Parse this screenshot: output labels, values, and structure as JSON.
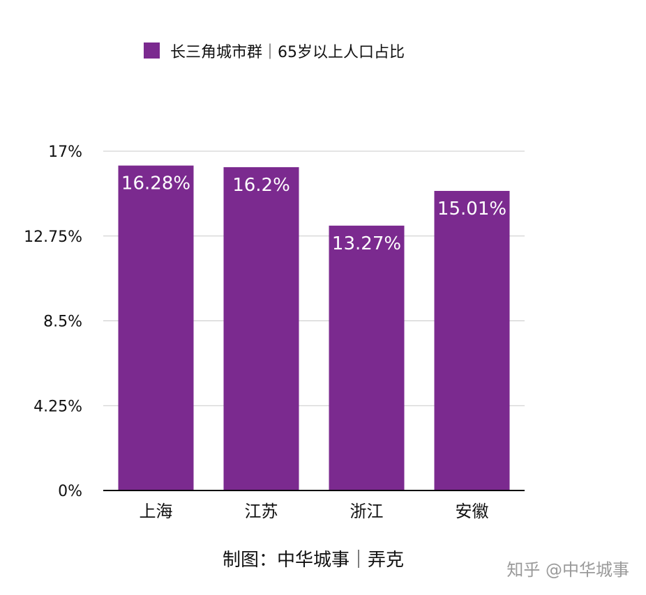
{
  "chart_data": {
    "type": "bar",
    "legend": {
      "label": "长三角城市群｜65岁以上人口占比",
      "color": "#7b2a8f",
      "placement": "top-left"
    },
    "categories": [
      "上海",
      "江苏",
      "浙江",
      "安徽"
    ],
    "series": [
      {
        "name": "长三角城市群｜65岁以上人口占比",
        "values": [
          16.28,
          16.2,
          13.27,
          15.01
        ],
        "labels": [
          "16.28%",
          "16.2%",
          "13.27%",
          "15.01%"
        ]
      }
    ],
    "ylim": [
      0,
      17
    ],
    "yticks": [
      "0%",
      "4.25%",
      "8.5%",
      "12.75%",
      "17%"
    ],
    "ytick_values": [
      0,
      4.25,
      8.5,
      12.75,
      17
    ],
    "grid": true,
    "bar_color": "#7b2a8f",
    "xlabel": "",
    "ylabel": ""
  },
  "footer": {
    "credit": "制图：中华城事｜弄克",
    "watermark": "知乎 @中华城事"
  },
  "colors": {
    "grid": "#c8c8c8",
    "axis": "#000000",
    "text": "#111111",
    "watermark": "#9a9a9a",
    "bar_label": "#ffffff"
  }
}
